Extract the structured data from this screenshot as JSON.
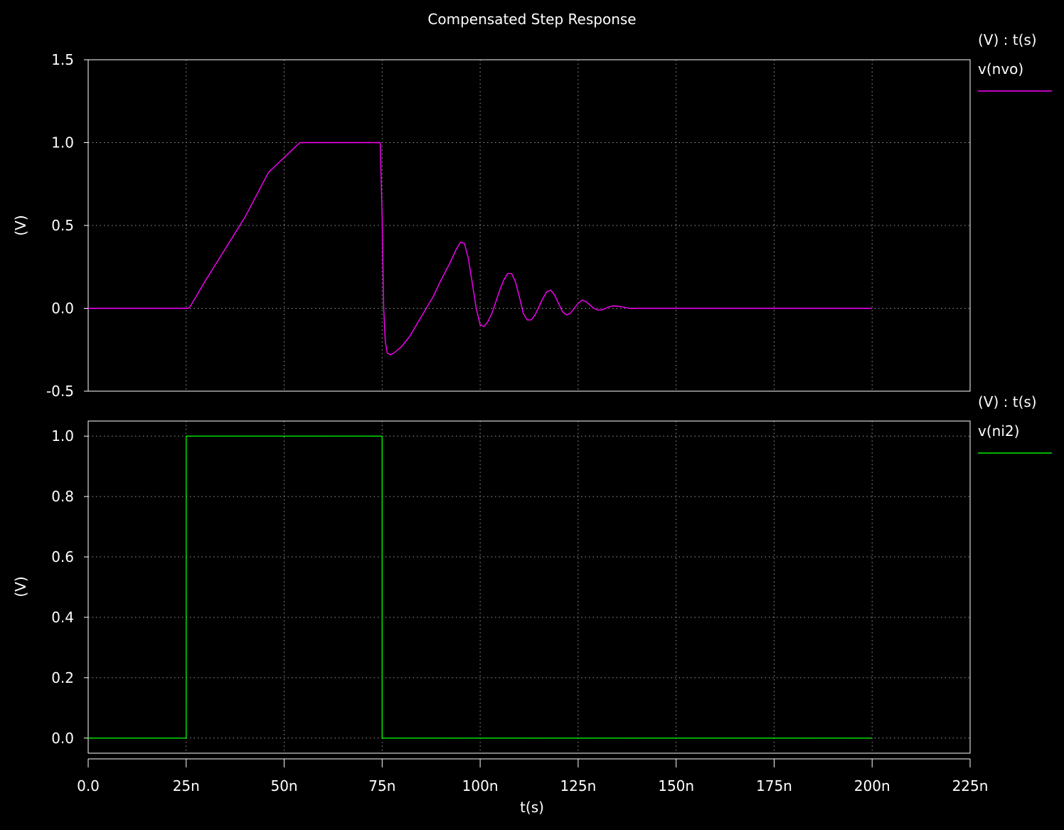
{
  "chart_data": {
    "title": "Compensated Step Response",
    "xlabel": "t(s)",
    "x_ticks": [
      "0.0",
      "25n",
      "50n",
      "75n",
      "100n",
      "125n",
      "150n",
      "175n",
      "200n",
      "225n"
    ],
    "xlim": [
      0,
      225
    ],
    "x_unit": "ns",
    "grid": true,
    "background": "#000000",
    "grid_color": "#9a9a9a",
    "panels": [
      {
        "type": "line",
        "ylabel": "(V)",
        "legend_header": "(V) : t(s)",
        "ylim": [
          -0.5,
          1.5
        ],
        "y_ticks": [
          "1.5",
          "1.0",
          "0.5",
          "0.0",
          "-0.5"
        ],
        "series": [
          {
            "name": "v(nvo)",
            "color": "#ff00ff",
            "x": [
              0,
              20,
              25,
              25.5,
              26,
              30,
              35,
              40,
              46,
              54,
              60,
              65,
              70,
              74.5,
              75,
              75.4,
              75.8,
              76.3,
              77,
              78,
              80,
              82,
              84,
              86,
              88,
              90,
              92,
              94,
              95,
              96,
              97,
              98,
              99,
              100,
              101,
              102,
              103,
              104,
              105,
              106,
              107,
              108,
              109,
              110,
              111,
              112,
              113,
              114,
              115,
              116,
              117,
              118,
              119,
              120,
              121,
              122,
              123,
              124,
              125,
              126,
              127,
              128,
              129,
              130,
              131,
              132,
              133,
              134,
              136,
              138,
              140,
              145,
              150,
              155,
              160,
              165,
              170,
              175,
              180,
              190,
              200
            ],
            "y": [
              0,
              0,
              0,
              0,
              0.01,
              0.17,
              0.36,
              0.55,
              0.82,
              1.0,
              1.0,
              1.0,
              1.0,
              1.0,
              0.55,
              0.0,
              -0.2,
              -0.27,
              -0.28,
              -0.27,
              -0.23,
              -0.17,
              -0.09,
              -0.01,
              0.07,
              0.17,
              0.26,
              0.36,
              0.4,
              0.39,
              0.3,
              0.15,
              0.0,
              -0.1,
              -0.11,
              -0.08,
              -0.03,
              0.04,
              0.11,
              0.17,
              0.21,
              0.21,
              0.16,
              0.07,
              -0.03,
              -0.07,
              -0.07,
              -0.04,
              0.01,
              0.06,
              0.1,
              0.11,
              0.08,
              0.03,
              -0.02,
              -0.04,
              -0.03,
              0.0,
              0.03,
              0.05,
              0.04,
              0.02,
              0.0,
              -0.01,
              -0.01,
              0.0,
              0.01,
              0.015,
              0.01,
              0.0,
              0.0,
              0.0,
              0.0,
              0.0,
              0.0,
              0.0,
              0.0,
              0.0,
              0.0,
              0.0,
              0.0
            ]
          }
        ]
      },
      {
        "type": "line",
        "ylabel": "(V)",
        "legend_header": "(V) : t(s)",
        "ylim": [
          -0.05,
          1.05
        ],
        "y_ticks": [
          "1.0",
          "0.8",
          "0.6",
          "0.4",
          "0.2",
          "0.0"
        ],
        "series": [
          {
            "name": "v(ni2)",
            "color": "#00ee00",
            "x": [
              0,
              25,
              25,
              75,
              75,
              200
            ],
            "y": [
              0,
              0,
              1,
              1,
              0,
              0
            ]
          }
        ]
      }
    ]
  }
}
